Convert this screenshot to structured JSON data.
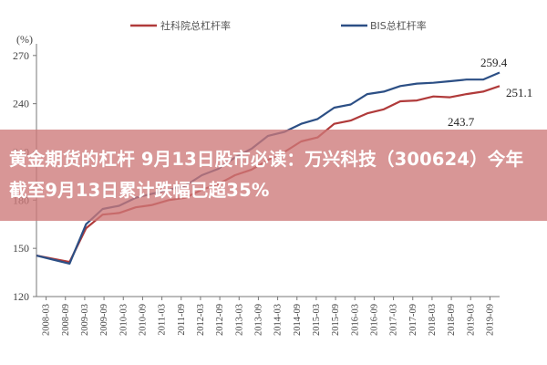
{
  "headline": "黄金期货的杠杆 9月13日股市必读：万兴科技（300624）今年截至9月13日累计跌幅已超35%",
  "chart_data": {
    "type": "line",
    "unit_label": "(%)",
    "ylim": [
      120,
      275
    ],
    "yticks": [
      120,
      150,
      180,
      210,
      240,
      270
    ],
    "x_tick_labels": [
      "2008-03",
      "2008-09",
      "2009-03",
      "2009-09",
      "2010-03",
      "2010-09",
      "2011-03",
      "2011-09",
      "2012-03",
      "2012-09",
      "2013-03",
      "2013-09",
      "2014-03",
      "2014-09",
      "2015-03",
      "2015-09",
      "2016-03",
      "2016-09",
      "2017-03",
      "2017-09",
      "2018-03",
      "2018-09",
      "2019-03",
      "2019-09"
    ],
    "grid": false,
    "legend_position": "top",
    "series": [
      {
        "name": "社科院总杠杆率",
        "color": "#b03a3a",
        "values": [
          145.5,
          143.5,
          141.5,
          162.5,
          171.0,
          172.0,
          175.5,
          177.0,
          180.0,
          181.5,
          186.5,
          190.0,
          195.5,
          199.0,
          205.0,
          210.0,
          216.5,
          219.0,
          227.5,
          229.5,
          234.0,
          236.5,
          241.5,
          242.0,
          244.5,
          244.0,
          246.0,
          247.5,
          251.0
        ]
      },
      {
        "name": "BIS总杠杆率",
        "color": "#2c4f85",
        "values": [
          145.5,
          143.0,
          140.5,
          165.0,
          174.5,
          176.5,
          181.5,
          184.0,
          186.5,
          189.0,
          195.5,
          199.5,
          206.5,
          212.0,
          220.0,
          222.5,
          227.5,
          230.5,
          237.5,
          239.5,
          246.0,
          247.5,
          251.0,
          252.5,
          253.0,
          254.0,
          255.0,
          255.0,
          259.4
        ]
      }
    ],
    "annotations": [
      {
        "text": "259.4"
      },
      {
        "text": "251.1"
      },
      {
        "text": "243.7"
      }
    ]
  }
}
